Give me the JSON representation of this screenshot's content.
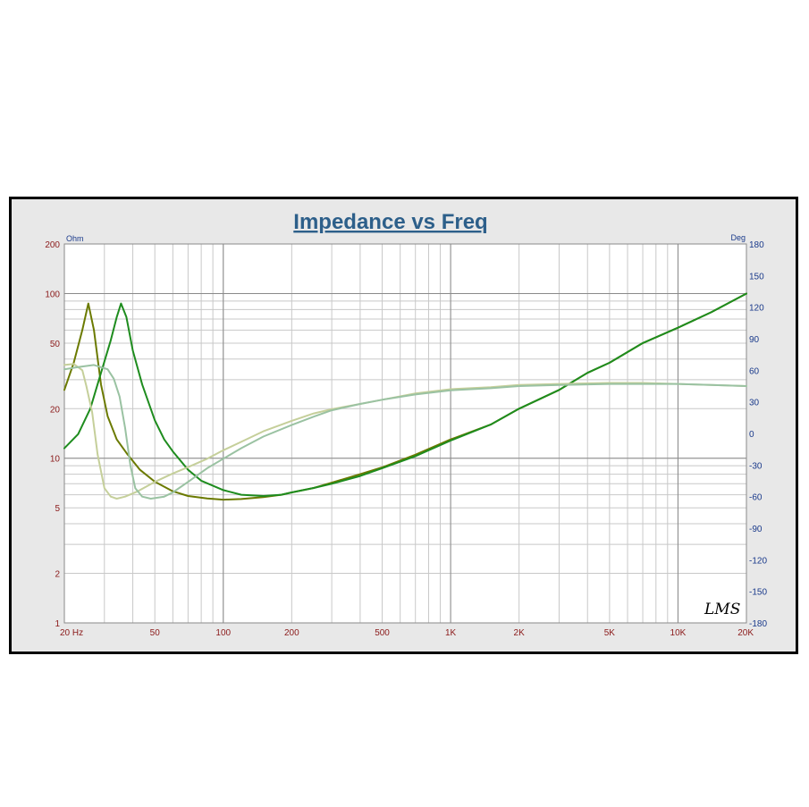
{
  "chart_data": {
    "type": "line",
    "title": "Impedance vs Freq",
    "x_scale": "log",
    "xlim": [
      20,
      20000
    ],
    "x_ticks": [
      {
        "value": 20,
        "label": "20  Hz"
      },
      {
        "value": 50,
        "label": "50"
      },
      {
        "value": 100,
        "label": "100"
      },
      {
        "value": 200,
        "label": "200"
      },
      {
        "value": 500,
        "label": "500"
      },
      {
        "value": 1000,
        "label": "1K"
      },
      {
        "value": 2000,
        "label": "2K"
      },
      {
        "value": 5000,
        "label": "5K"
      },
      {
        "value": 10000,
        "label": "10K"
      },
      {
        "value": 20000,
        "label": "20K"
      }
    ],
    "y_left": {
      "unit": "Ohm",
      "scale": "log",
      "ylim": [
        1,
        200
      ],
      "ticks": [
        {
          "value": 1,
          "label": "1"
        },
        {
          "value": 2,
          "label": "2"
        },
        {
          "value": 5,
          "label": "5"
        },
        {
          "value": 10,
          "label": "10"
        },
        {
          "value": 20,
          "label": "20"
        },
        {
          "value": 50,
          "label": "50"
        },
        {
          "value": 100,
          "label": "100"
        },
        {
          "value": 200,
          "label": "200"
        }
      ]
    },
    "y_right": {
      "unit": "Deg",
      "scale": "linear",
      "ylim": [
        -180,
        180
      ],
      "ticks": [
        {
          "value": 180,
          "label": "180"
        },
        {
          "value": 150,
          "label": "150"
        },
        {
          "value": 120,
          "label": "120"
        },
        {
          "value": 90,
          "label": "90"
        },
        {
          "value": 60,
          "label": "60"
        },
        {
          "value": 30,
          "label": "30"
        },
        {
          "value": 0,
          "label": "0"
        },
        {
          "value": -30,
          "label": "-30"
        },
        {
          "value": -60,
          "label": "-60"
        },
        {
          "value": -90,
          "label": "-90"
        },
        {
          "value": -120,
          "label": "-120"
        },
        {
          "value": -150,
          "label": "-150"
        },
        {
          "value": -180,
          "label": "-180"
        }
      ]
    },
    "grid": true,
    "series": [
      {
        "axis": "left",
        "color": "#6b7a00",
        "points": [
          [
            20,
            26
          ],
          [
            22,
            38
          ],
          [
            24,
            60
          ],
          [
            25.5,
            87
          ],
          [
            27,
            60
          ],
          [
            29,
            28
          ],
          [
            31,
            18
          ],
          [
            34,
            13
          ],
          [
            38,
            10.5
          ],
          [
            43,
            8.5
          ],
          [
            50,
            7.2
          ],
          [
            60,
            6.3
          ],
          [
            70,
            5.9
          ],
          [
            85,
            5.7
          ],
          [
            100,
            5.6
          ],
          [
            120,
            5.65
          ],
          [
            150,
            5.8
          ],
          [
            180,
            6.0
          ],
          [
            200,
            6.2
          ],
          [
            250,
            6.6
          ],
          [
            300,
            7.1
          ],
          [
            400,
            8.0
          ],
          [
            500,
            8.8
          ],
          [
            700,
            10.5
          ],
          [
            1000,
            13
          ],
          [
            1500,
            16
          ],
          [
            2000,
            20
          ],
          [
            3000,
            26
          ],
          [
            4000,
            33
          ],
          [
            5000,
            38
          ],
          [
            7000,
            50
          ],
          [
            10000,
            62
          ],
          [
            14000,
            77
          ],
          [
            20000,
            100
          ]
        ]
      },
      {
        "axis": "left",
        "color": "#1e8c1e",
        "points": [
          [
            20,
            11.5
          ],
          [
            23,
            14
          ],
          [
            26,
            20
          ],
          [
            29,
            33
          ],
          [
            32,
            52
          ],
          [
            34,
            72
          ],
          [
            35.5,
            87
          ],
          [
            37.5,
            72
          ],
          [
            40,
            45
          ],
          [
            44,
            28
          ],
          [
            50,
            17
          ],
          [
            55,
            13
          ],
          [
            60,
            11
          ],
          [
            70,
            8.5
          ],
          [
            80,
            7.3
          ],
          [
            100,
            6.4
          ],
          [
            120,
            6.0
          ],
          [
            150,
            5.9
          ],
          [
            180,
            6.0
          ],
          [
            200,
            6.2
          ],
          [
            250,
            6.6
          ],
          [
            300,
            7.0
          ],
          [
            400,
            7.8
          ],
          [
            500,
            8.7
          ],
          [
            700,
            10.3
          ],
          [
            1000,
            12.8
          ],
          [
            1500,
            16
          ],
          [
            2000,
            20
          ],
          [
            3000,
            26
          ],
          [
            4000,
            33
          ],
          [
            5000,
            38
          ],
          [
            7000,
            50
          ],
          [
            10000,
            62
          ],
          [
            14000,
            77
          ],
          [
            20000,
            100
          ]
        ]
      },
      {
        "axis": "right",
        "color": "#c5cf9a",
        "points": [
          [
            20,
            65
          ],
          [
            22,
            66
          ],
          [
            24,
            60
          ],
          [
            25,
            45
          ],
          [
            26.5,
            20
          ],
          [
            28,
            -20
          ],
          [
            30,
            -52
          ],
          [
            32,
            -60
          ],
          [
            34,
            -62
          ],
          [
            37,
            -60
          ],
          [
            42,
            -55
          ],
          [
            50,
            -46
          ],
          [
            60,
            -38
          ],
          [
            70,
            -32
          ],
          [
            85,
            -24
          ],
          [
            100,
            -16
          ],
          [
            120,
            -8
          ],
          [
            150,
            2
          ],
          [
            200,
            12
          ],
          [
            250,
            19
          ],
          [
            300,
            23
          ],
          [
            400,
            28
          ],
          [
            500,
            32
          ],
          [
            700,
            38
          ],
          [
            1000,
            42
          ],
          [
            1500,
            44
          ],
          [
            2000,
            46
          ],
          [
            3000,
            47
          ],
          [
            5000,
            48
          ],
          [
            7000,
            48
          ],
          [
            10000,
            47
          ],
          [
            14000,
            46
          ],
          [
            20000,
            45
          ]
        ]
      },
      {
        "axis": "right",
        "color": "#9ac2a2",
        "points": [
          [
            20,
            61
          ],
          [
            23,
            63
          ],
          [
            27,
            65
          ],
          [
            31,
            61
          ],
          [
            33,
            52
          ],
          [
            35,
            35
          ],
          [
            37,
            5
          ],
          [
            39,
            -30
          ],
          [
            41,
            -52
          ],
          [
            44,
            -60
          ],
          [
            48,
            -62
          ],
          [
            55,
            -60
          ],
          [
            60,
            -56
          ],
          [
            70,
            -46
          ],
          [
            85,
            -33
          ],
          [
            100,
            -24
          ],
          [
            120,
            -14
          ],
          [
            150,
            -3
          ],
          [
            200,
            8
          ],
          [
            250,
            16
          ],
          [
            300,
            22
          ],
          [
            400,
            28
          ],
          [
            500,
            32
          ],
          [
            700,
            37
          ],
          [
            1000,
            41
          ],
          [
            1500,
            43
          ],
          [
            2000,
            45
          ],
          [
            3000,
            46
          ],
          [
            5000,
            47
          ],
          [
            7000,
            47
          ],
          [
            10000,
            47
          ],
          [
            14000,
            46
          ],
          [
            20000,
            45
          ]
        ]
      }
    ],
    "logo": "LMS"
  }
}
